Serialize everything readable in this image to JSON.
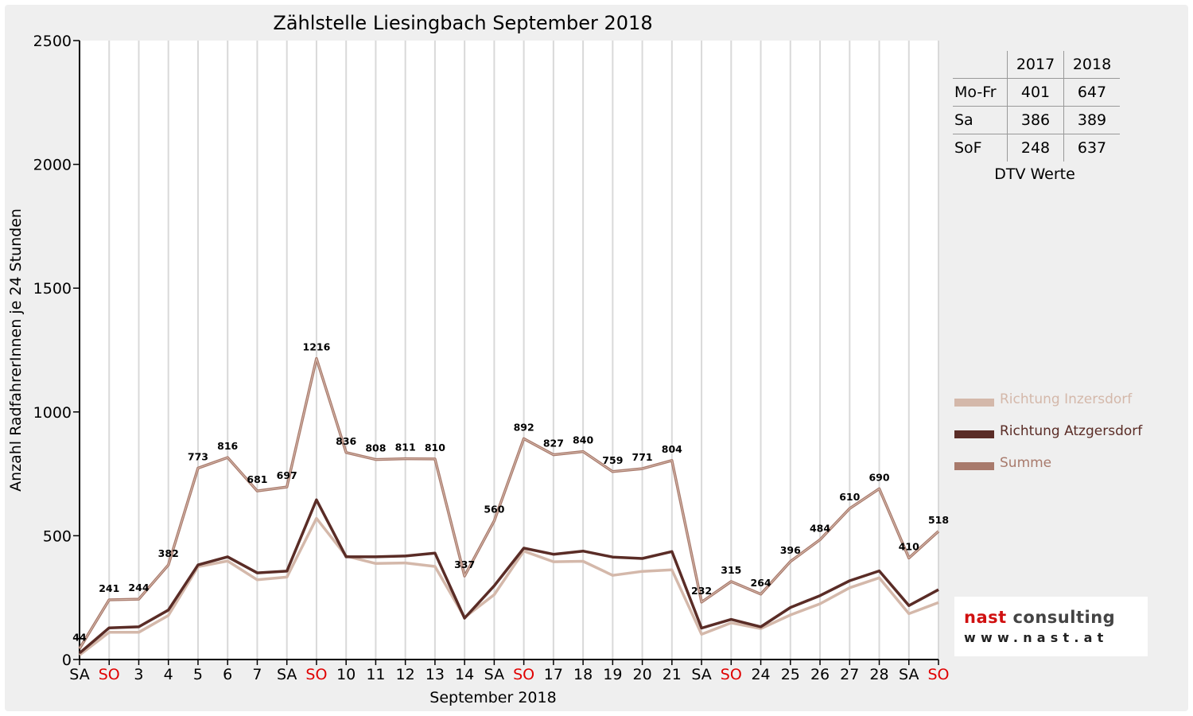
{
  "chart_data": {
    "type": "line",
    "title": "Zählstelle Liesingbach September 2018",
    "xlabel": "September 2018",
    "ylabel": "Anzahl RadfahrerInnen je 24 Stunden",
    "ylim": [
      0,
      2500
    ],
    "yticks": [
      "0",
      "500",
      "1000",
      "1500",
      "2000",
      "2500"
    ],
    "grid": "vertical",
    "legend_position": "right",
    "categories": [
      "SA",
      "SO",
      "3",
      "4",
      "5",
      "6",
      "7",
      "SA",
      "SO",
      "10",
      "11",
      "12",
      "13",
      "14",
      "SA",
      "SO",
      "17",
      "18",
      "19",
      "20",
      "21",
      "SA",
      "SO",
      "24",
      "25",
      "26",
      "27",
      "28",
      "SA",
      "SO"
    ],
    "sunday_indices": [
      1,
      8,
      15,
      22,
      29
    ],
    "sunday_color": "#e00000",
    "series": [
      {
        "name": "Richtung Inzersdorf",
        "color": "#d4b8aa",
        "values": [
          18,
          110,
          110,
          178,
          375,
          398,
          322,
          333,
          570,
          418,
          388,
          390,
          376,
          170,
          262,
          438,
          395,
          397,
          340,
          356,
          362,
          102,
          148,
          125,
          180,
          225,
          290,
          330,
          185,
          230
        ]
      },
      {
        "name": "Richtung Atzgersdorf",
        "color": "#5a2c26",
        "values": [
          26,
          128,
          132,
          200,
          382,
          415,
          350,
          357,
          645,
          415,
          415,
          418,
          430,
          167,
          298,
          450,
          425,
          438,
          414,
          408,
          436,
          127,
          162,
          132,
          210,
          258,
          318,
          358,
          218,
          282
        ]
      },
      {
        "name": "Summe",
        "color": "#a87a6c",
        "values": [
          44,
          241,
          244,
          382,
          773,
          816,
          681,
          697,
          1216,
          836,
          808,
          811,
          810,
          337,
          560,
          892,
          827,
          840,
          759,
          771,
          804,
          232,
          315,
          264,
          396,
          484,
          610,
          690,
          410,
          518
        ]
      }
    ],
    "data_labels": [
      "44",
      "241",
      "244",
      "382",
      "773",
      "816",
      "681",
      "697",
      "1216",
      "836",
      "808",
      "811",
      "810",
      "337",
      "560",
      "892",
      "827",
      "840",
      "759",
      "771",
      "804",
      "232",
      "315",
      "264",
      "396",
      "484",
      "610",
      "690",
      "410",
      "518"
    ]
  },
  "dtv_table": {
    "caption": "DTV Werte",
    "headers": [
      "",
      "2017",
      "2018"
    ],
    "rows": [
      {
        "label": "Mo-Fr",
        "v2017": "401",
        "v2018": "647"
      },
      {
        "label": "Sa",
        "v2017": "386",
        "v2018": "389"
      },
      {
        "label": "SoF",
        "v2017": "248",
        "v2018": "637"
      }
    ]
  },
  "logo": {
    "name_part1": "nast",
    "name_part2": " consulting",
    "url": "www.nast.at",
    "color_part1": "#d01010",
    "color_part2": "#444444"
  }
}
